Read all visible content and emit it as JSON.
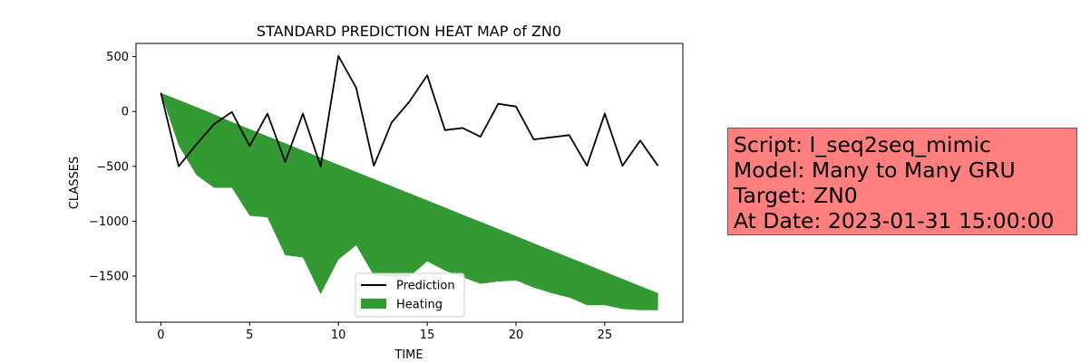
{
  "chart_data": {
    "type": "line",
    "title": "STANDARD PREDICTION HEAT MAP of ZN0",
    "xlabel": "TIME",
    "ylabel": "CLASSES",
    "xlim": [
      -1.4,
      29.4
    ],
    "ylim": [
      -1920,
      620
    ],
    "xticks": [
      0,
      5,
      10,
      15,
      20,
      25
    ],
    "yticks": [
      500,
      0,
      -500,
      -1000,
      -1500
    ],
    "ytick_labels": [
      "500",
      "0",
      "−500",
      "−1000",
      "−1500"
    ],
    "x": [
      0,
      1,
      2,
      3,
      4,
      5,
      6,
      7,
      8,
      9,
      10,
      11,
      12,
      13,
      14,
      15,
      16,
      17,
      18,
      19,
      20,
      21,
      22,
      23,
      24,
      25,
      26,
      27,
      28
    ],
    "series": [
      {
        "name": "Prediction",
        "type": "line",
        "color": "#000000",
        "values": [
          170,
          -500,
          -300,
          -115,
          -5,
          -315,
          -20,
          -460,
          -20,
          -500,
          505,
          215,
          -495,
          -100,
          90,
          330,
          -170,
          -150,
          -230,
          70,
          45,
          -255,
          -235,
          -215,
          -495,
          -20,
          -495,
          -265,
          -495
        ]
      },
      {
        "name": "Heating",
        "type": "area",
        "color": "#339933",
        "upper": [
          170,
          105,
          40,
          -25,
          -95,
          -160,
          -225,
          -290,
          -355,
          -420,
          -485,
          -550,
          -615,
          -680,
          -745,
          -810,
          -875,
          -940,
          -1005,
          -1070,
          -1135,
          -1200,
          -1265,
          -1330,
          -1395,
          -1460,
          -1525,
          -1590,
          -1655
        ],
        "lower": [
          170,
          -310,
          -580,
          -695,
          -695,
          -950,
          -965,
          -1310,
          -1330,
          -1665,
          -1350,
          -1220,
          -1495,
          -1505,
          -1505,
          -1365,
          -1450,
          -1510,
          -1570,
          -1550,
          -1540,
          -1605,
          -1655,
          -1695,
          -1765,
          -1765,
          -1800,
          -1810,
          -1810
        ]
      }
    ],
    "legend_location": "lower center",
    "grid": false
  },
  "info": {
    "script": "Script: I_seq2seq_mimic",
    "model": "Model: Many to Many GRU",
    "target": "Target: ZN0",
    "date": "At Date: 2023-01-31 15:00:00",
    "background": "#ff7f7f"
  }
}
